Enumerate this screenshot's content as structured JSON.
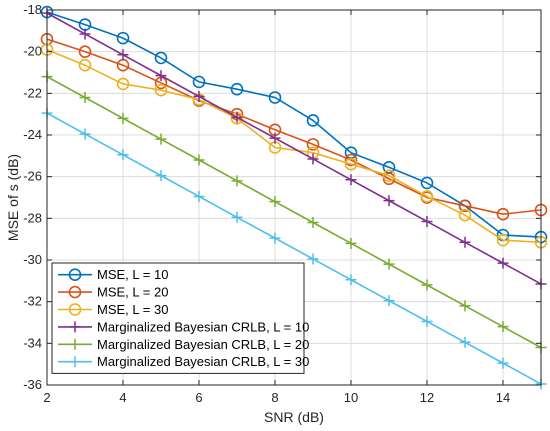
{
  "chart_data": {
    "type": "line",
    "title": "",
    "xlabel": "SNR (dB)",
    "ylabel": "MSE of s (dB)",
    "xlim": [
      2,
      15
    ],
    "ylim": [
      -36,
      -18
    ],
    "xticks": [
      2,
      4,
      6,
      8,
      10,
      12,
      14
    ],
    "yticks": [
      -18,
      -20,
      -22,
      -24,
      -26,
      -28,
      -30,
      -32,
      -34,
      -36
    ],
    "grid": true,
    "legend_position": "bottom-left",
    "x": [
      2,
      3,
      4,
      5,
      6,
      7,
      8,
      9,
      10,
      11,
      12,
      13,
      14,
      15
    ],
    "series": [
      {
        "name": "MSE, L = 10",
        "color": "#0072BD",
        "marker": "circle",
        "values": [
          -18.1,
          -18.7,
          -19.35,
          -20.3,
          -21.45,
          -21.8,
          -22.2,
          -23.3,
          -24.85,
          -25.55,
          -26.3,
          -27.4,
          -28.8,
          -28.9
        ]
      },
      {
        "name": "MSE, L = 20",
        "color": "#D95319",
        "marker": "circle",
        "values": [
          -19.4,
          -20.0,
          -20.65,
          -21.5,
          -22.35,
          -23.0,
          -23.75,
          -24.45,
          -25.2,
          -26.1,
          -27.0,
          -27.4,
          -27.8,
          -27.6
        ]
      },
      {
        "name": "MSE, L = 30",
        "color": "#EDB120",
        "marker": "circle",
        "values": [
          -19.9,
          -20.65,
          -21.55,
          -21.85,
          -22.3,
          -23.2,
          -24.6,
          -24.85,
          -25.4,
          -25.95,
          -26.95,
          -27.85,
          -29.05,
          -29.15
        ]
      },
      {
        "name": "Marginalized Bayesian CRLB, L = 10",
        "color": "#7E2F8E",
        "marker": "plus",
        "values": [
          -18.15,
          -19.15,
          -20.15,
          -21.15,
          -22.15,
          -23.15,
          -24.15,
          -25.15,
          -26.15,
          -27.15,
          -28.15,
          -29.15,
          -30.15,
          -31.15
        ]
      },
      {
        "name": "Marginalized Bayesian CRLB, L = 20",
        "color": "#77AC30",
        "marker": "plus",
        "values": [
          -21.2,
          -22.2,
          -23.2,
          -24.2,
          -25.2,
          -26.2,
          -27.2,
          -28.2,
          -29.2,
          -30.2,
          -31.2,
          -32.2,
          -33.2,
          -34.2
        ]
      },
      {
        "name": "Marginalized Bayesian CRLB, L = 30",
        "color": "#4DBEEE",
        "marker": "plus",
        "values": [
          -22.95,
          -23.95,
          -24.95,
          -25.95,
          -26.95,
          -27.95,
          -28.95,
          -29.95,
          -30.95,
          -31.95,
          -32.95,
          -33.95,
          -34.95,
          -35.95
        ]
      }
    ]
  }
}
